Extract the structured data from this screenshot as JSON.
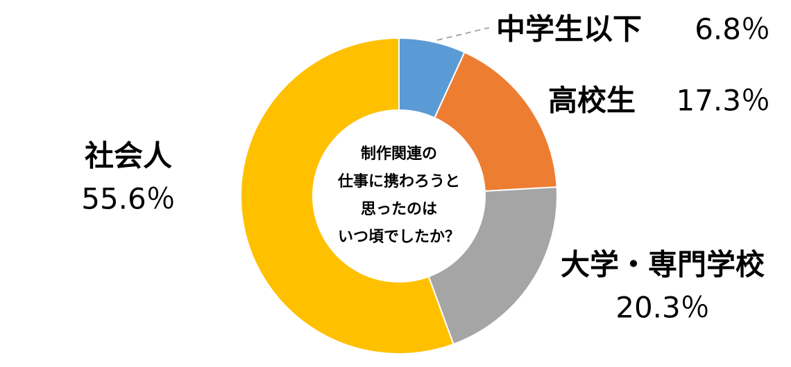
{
  "chart_data": {
    "type": "donut",
    "center_text": [
      "制作関連の",
      "仕事に携わろうと",
      "思ったのは",
      "いつ頃でしたか？"
    ],
    "categories": [
      "中学生以下",
      "高校生",
      "大学・専門学校",
      "社会人"
    ],
    "values": [
      6.8,
      17.3,
      20.3,
      55.6
    ],
    "value_labels": [
      "6.8％",
      "17.3％",
      "20.3％",
      "55.6％"
    ],
    "colors": [
      "#5b9bd5",
      "#ed7d31",
      "#a5a5a5",
      "#ffc000"
    ]
  }
}
